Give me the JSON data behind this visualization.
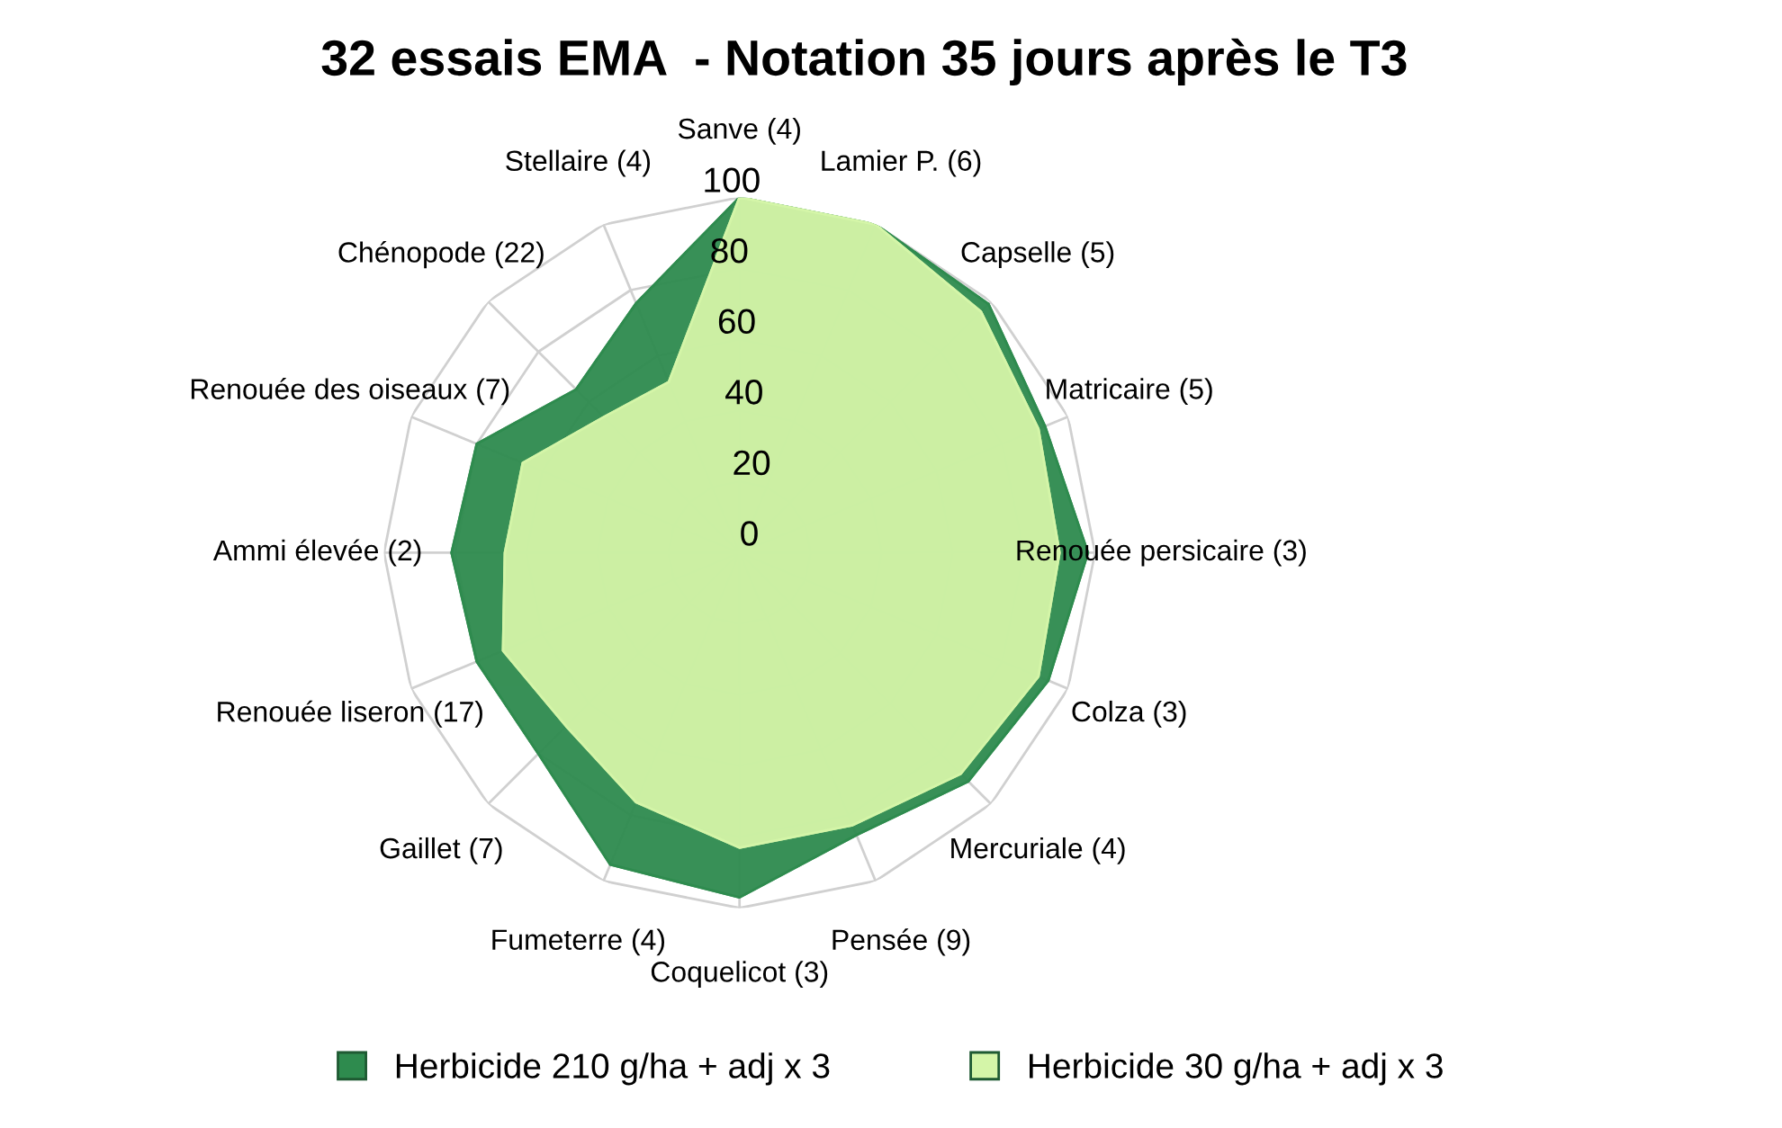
{
  "chart_data": {
    "type": "radar",
    "title": "32 essais EMA  - Notation 35 jours après le T3",
    "categories": [
      "Sanve (4)",
      "Lamier P. (6)",
      "Capselle (5)",
      "Matricaire (5)",
      "Renouée persicaire (3)",
      "Colza (3)",
      "Mercuriale (4)",
      "Pensée (9)",
      "Coquelicot (3)",
      "Fumeterre (4)",
      "Gaillet (7)",
      "Renouée liseron (17)",
      "Ammi élevée (2)",
      "Renouée des oiseaux (7)",
      "Chénopode (22)",
      "Stellaire (4)"
    ],
    "series": [
      {
        "name": "Herbicide 210 g/ha + adj x 3",
        "color": "#2e8b4e",
        "values": [
          100,
          100,
          99,
          93,
          98,
          94,
          91,
          86,
          97,
          95,
          80,
          80,
          81,
          80,
          65,
          76
        ]
      },
      {
        "name": "Herbicide 30 g/ha + adj x 3",
        "color": "#d4f5a8",
        "values": [
          100,
          100,
          96,
          91,
          90,
          91,
          88,
          83,
          83,
          76,
          69,
          72,
          66,
          66,
          54,
          52
        ]
      }
    ],
    "ylim": [
      0,
      100
    ],
    "yticks": [
      0,
      20,
      40,
      60,
      80,
      100
    ],
    "grid": true,
    "legend": "bottom"
  }
}
